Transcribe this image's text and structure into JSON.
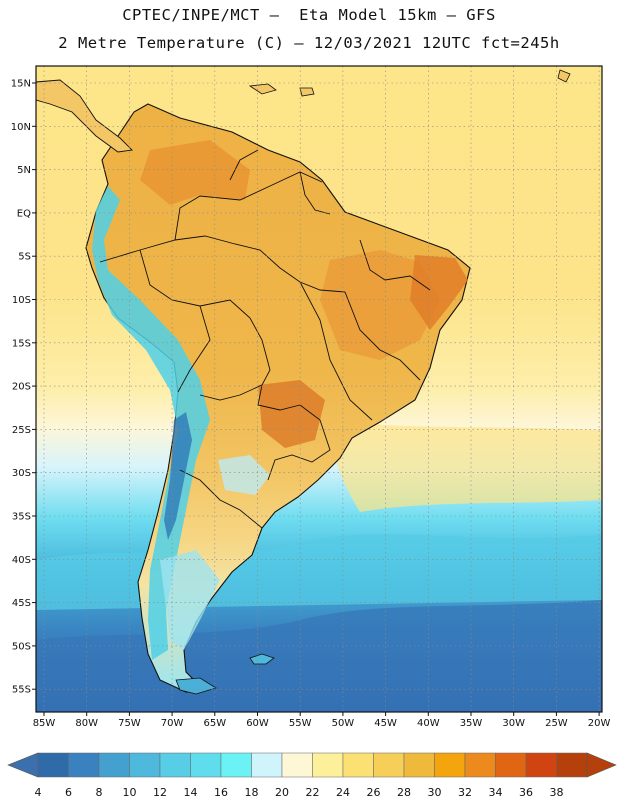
{
  "header": {
    "line1": "CPTEC/INPE/MCT –  Eta Model 15km – GFS",
    "line2": "2 Metre Temperature (C) – 12/03/2021 12UTC fct=245h"
  },
  "map": {
    "lat_labels": [
      "15N",
      "10N",
      "5N",
      "EQ",
      "5S",
      "10S",
      "15S",
      "20S",
      "25S",
      "30S",
      "35S",
      "40S",
      "45S",
      "50S",
      "55S"
    ],
    "lon_labels": [
      "85W",
      "80W",
      "75W",
      "70W",
      "65W",
      "60W",
      "55W",
      "50W",
      "45W",
      "40W",
      "35W",
      "30W",
      "25W",
      "20W"
    ],
    "colors": {
      "ocean_north": "#fde58a",
      "ocean_mid": "#fdf3c4",
      "land_warm": "#f0bd45",
      "land_hot": "#e88a24",
      "andes": "#5ad8ee",
      "ocean_cold": "#4fd0ea",
      "ocean_deep": "#2e66aa",
      "border": "#111111"
    }
  },
  "colorbar": {
    "labels": [
      "4",
      "6",
      "8",
      "10",
      "12",
      "14",
      "16",
      "18",
      "20",
      "22",
      "24",
      "26",
      "28",
      "30",
      "32",
      "34",
      "36",
      "38"
    ],
    "low_color": "#3b6fae",
    "high_color": "#b5400c",
    "colors": [
      "#2f6aa9",
      "#3a82bf",
      "#44a0cf",
      "#4fb9dd",
      "#58cde6",
      "#5fdded",
      "#6af2f5",
      "#cff4fb",
      "#fdf7d6",
      "#fdf09a",
      "#fbe174",
      "#f6cf58",
      "#efba3c",
      "#f4a40d",
      "#ec8a1e",
      "#e06614",
      "#cf4410",
      "#b5400c"
    ]
  }
}
